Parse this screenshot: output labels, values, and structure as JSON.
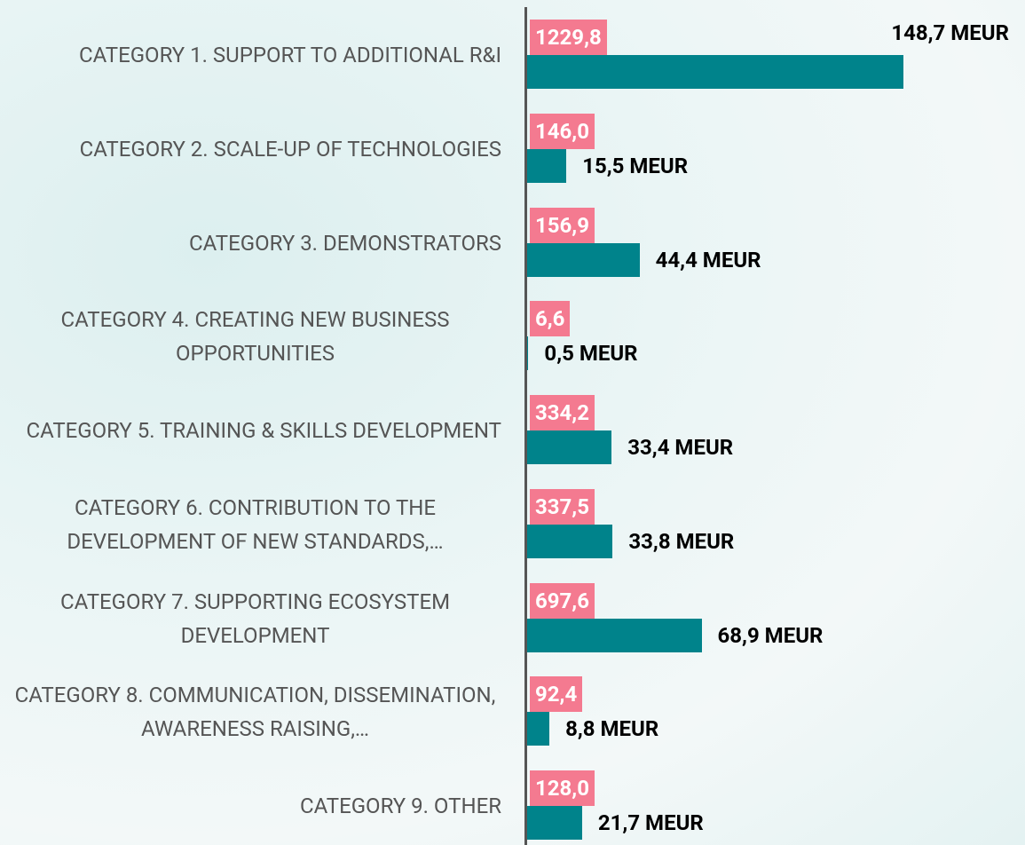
{
  "chart_data": {
    "type": "bar",
    "orientation": "horizontal",
    "categories": [
      "CATEGORY 1. SUPPORT TO ADDITIONAL R&I",
      "CATEGORY 2. SCALE-UP OF TECHNOLOGIES",
      "CATEGORY 3. DEMONSTRATORS",
      "CATEGORY 4. CREATING NEW BUSINESS OPPORTUNITIES",
      "CATEGORY 5. TRAINING & SKILLS DEVELOPMENT",
      "CATEGORY 6. CONTRIBUTION TO THE DEVELOPMENT OF NEW STANDARDS,…",
      "CATEGORY 7. SUPPORTING ECOSYSTEM DEVELOPMENT",
      "CATEGORY 8. COMMUNICATION, DISSEMINATION, AWARENESS RAISING,…",
      "CATEGORY 9. OTHER"
    ],
    "values": [
      148.7,
      15.5,
      44.4,
      0.5,
      33.4,
      33.8,
      68.9,
      8.8,
      21.7
    ],
    "value_labels": [
      "148,7 MEUR",
      "15,5 MEUR",
      "44,4 MEUR",
      "0,5 MEUR",
      "33,4 MEUR",
      "33,8 MEUR",
      "68,9 MEUR",
      "8,8 MEUR",
      "21,7 MEUR"
    ],
    "secondary_values": [
      1229.8,
      146.0,
      156.9,
      6.6,
      334.2,
      337.5,
      697.6,
      92.4,
      128.0
    ],
    "secondary_value_labels": [
      "1229,8",
      "146,0",
      "156,9",
      "6,6",
      "334,2",
      "337,5",
      "697,6",
      "92,4",
      "128,0"
    ],
    "color": "#00838b",
    "secondary_color": "#f47a90"
  }
}
